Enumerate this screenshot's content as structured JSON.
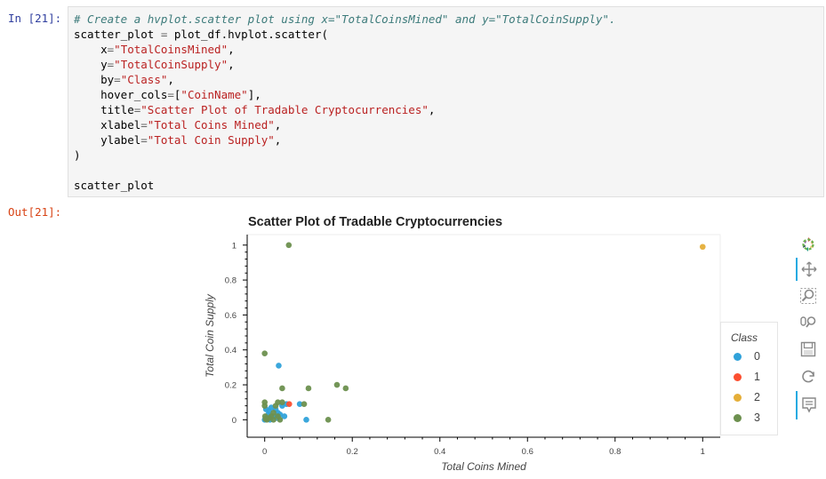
{
  "input_prompt": "In [21]:",
  "output_prompt": "Out[21]:",
  "code": {
    "comment": "# Create a hvplot.scatter plot using x=\"TotalCoinsMined\" and y=\"TotalCoinSupply\".",
    "line2_a": "scatter_plot ",
    "line2_eq": "=",
    "line2_b": " plot_df.hvplot.scatter(",
    "args": [
      {
        "key": "    x",
        "value": "\"TotalCoinsMined\""
      },
      {
        "key": "    y",
        "value": "\"TotalCoinSupply\""
      },
      {
        "key": "    by",
        "value": "\"Class\""
      },
      {
        "key": "    hover_cols",
        "value": "[\"CoinName\"]",
        "raw": true
      },
      {
        "key": "    title",
        "value": "\"Scatter Plot of Tradable Cryptocurrencies\""
      },
      {
        "key": "    xlabel",
        "value": "\"Total Coins Mined\""
      },
      {
        "key": "    ylabel",
        "value": "\"Total Coin Supply\""
      }
    ],
    "close": ")",
    "last": "scatter_plot"
  },
  "toolbar": {
    "icons": [
      "bokeh-logo-icon",
      "pan-icon",
      "box-zoom-icon",
      "wheel-zoom-icon",
      "save-icon",
      "reset-icon",
      "hover-icon"
    ]
  },
  "colors": {
    "class_0": "#30a2da",
    "class_1": "#fc4f30",
    "class_2": "#e5ae38",
    "class_3": "#6d904f",
    "accent": "#26aae1"
  },
  "chart_data": {
    "type": "scatter",
    "title": "Scatter Plot of Tradable Cryptocurrencies",
    "xlabel": "Total Coins Mined",
    "ylabel": "Total Coin Supply",
    "xlim": [
      -0.04,
      1.04
    ],
    "ylim": [
      -0.1,
      1.06
    ],
    "xticks": [
      "0",
      "0.2",
      "0.4",
      "0.6",
      "0.8",
      "1"
    ],
    "xtick_values": [
      0,
      0.2,
      0.4,
      0.6,
      0.8,
      1
    ],
    "yticks": [
      "0",
      "0.2",
      "0.4",
      "0.6",
      "0.8",
      "1"
    ],
    "ytick_values": [
      0,
      0.2,
      0.4,
      0.6,
      0.8,
      1
    ],
    "legend_title": "Class",
    "legend_position": "right",
    "series": [
      {
        "name": "0",
        "color": "#30a2da",
        "points": [
          [
            0.032,
            0.31
          ],
          [
            0.0,
            0.0
          ],
          [
            0.005,
            0.01
          ],
          [
            0.01,
            0.05
          ],
          [
            0.02,
            0.02
          ],
          [
            0.03,
            0.04
          ],
          [
            0.04,
            0.08
          ],
          [
            0.045,
            0.02
          ],
          [
            0.015,
            0.07
          ],
          [
            0.025,
            0.06
          ],
          [
            0.003,
            0.06
          ],
          [
            0.008,
            0.03
          ],
          [
            0.05,
            0.09
          ],
          [
            0.08,
            0.09
          ],
          [
            0.095,
            0.0
          ],
          [
            0.035,
            0.03
          ],
          [
            0.012,
            0.0
          ],
          [
            0.028,
            0.01
          ]
        ]
      },
      {
        "name": "1",
        "color": "#fc4f30",
        "points": [
          [
            0.056,
            0.09
          ]
        ]
      },
      {
        "name": "2",
        "color": "#e5ae38",
        "points": [
          [
            1.0,
            0.99
          ]
        ]
      },
      {
        "name": "3",
        "color": "#6d904f",
        "points": [
          [
            0.055,
            1.0
          ],
          [
            0.0,
            0.38
          ],
          [
            0.04,
            0.18
          ],
          [
            0.1,
            0.18
          ],
          [
            0.165,
            0.2
          ],
          [
            0.185,
            0.18
          ],
          [
            0.0,
            0.1
          ],
          [
            0.0,
            0.08
          ],
          [
            0.001,
            0.02
          ],
          [
            0.005,
            0.0
          ],
          [
            0.01,
            0.01
          ],
          [
            0.02,
            0.0
          ],
          [
            0.025,
            0.08
          ],
          [
            0.03,
            0.1
          ],
          [
            0.04,
            0.1
          ],
          [
            0.09,
            0.09
          ],
          [
            0.145,
            0.0
          ],
          [
            0.035,
            0.0
          ],
          [
            0.015,
            0.02
          ],
          [
            0.02,
            0.04
          ],
          [
            0.03,
            0.02
          ],
          [
            0.002,
            0.005
          ]
        ]
      }
    ]
  }
}
